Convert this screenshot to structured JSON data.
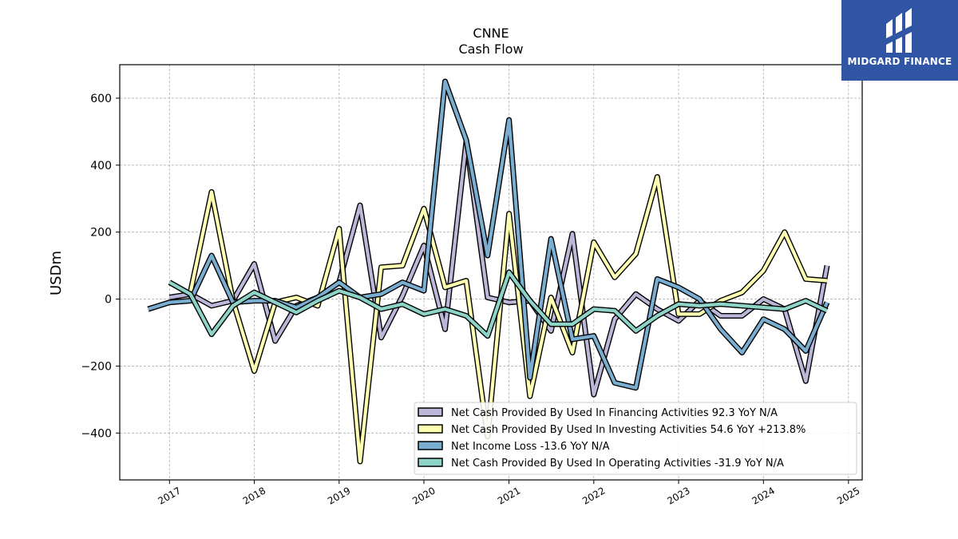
{
  "brand": {
    "name": "MIDGARD FINANCE",
    "color": "#2f55a4"
  },
  "chart_data": {
    "type": "line",
    "title": "CNNE",
    "subtitle": "Cash Flow",
    "ylabel": "USDm",
    "xlabel": "",
    "ylim": [
      -540,
      700
    ],
    "xlim": [
      "2016-06-01",
      "2025-03-01"
    ],
    "yticks": [
      -400,
      -200,
      0,
      200,
      400,
      600
    ],
    "xticks": [
      "2017",
      "2018",
      "2019",
      "2020",
      "2021",
      "2022",
      "2023",
      "2024",
      "2025"
    ],
    "grid": true,
    "legend_position": "bottom-right",
    "series": [
      {
        "name": "Net Cash Provided By Used In Financing Activities",
        "legend": "Net Cash Provided By Used In Financing Activities  92.3 YoY N/A",
        "color": "#bcb7d9",
        "points": [
          [
            "2017-01-01",
            5
          ],
          [
            "2017-04-01",
            15
          ],
          [
            "2017-07-01",
            -20
          ],
          [
            "2017-10-01",
            -5
          ],
          [
            "2018-01-01",
            105
          ],
          [
            "2018-04-01",
            -125
          ],
          [
            "2018-07-01",
            -20
          ],
          [
            "2018-10-01",
            5
          ],
          [
            "2019-01-01",
            50
          ],
          [
            "2019-04-01",
            280
          ],
          [
            "2019-07-01",
            -115
          ],
          [
            "2019-10-01",
            10
          ],
          [
            "2020-01-01",
            160
          ],
          [
            "2020-04-01",
            -90
          ],
          [
            "2020-07-01",
            470
          ],
          [
            "2020-10-01",
            5
          ],
          [
            "2021-01-01",
            -10
          ],
          [
            "2021-04-01",
            -5
          ],
          [
            "2021-07-01",
            -95
          ],
          [
            "2021-10-01",
            195
          ],
          [
            "2022-01-01",
            -285
          ],
          [
            "2022-04-01",
            -60
          ],
          [
            "2022-07-01",
            15
          ],
          [
            "2022-10-01",
            -30
          ],
          [
            "2023-01-01",
            -65
          ],
          [
            "2023-04-01",
            -5
          ],
          [
            "2023-07-01",
            -50
          ],
          [
            "2023-10-01",
            -50
          ],
          [
            "2024-01-01",
            0
          ],
          [
            "2024-04-01",
            -30
          ],
          [
            "2024-07-01",
            -245
          ],
          [
            "2024-10-01",
            100
          ]
        ]
      },
      {
        "name": "Net Cash Provided By Used In Investing Activities",
        "legend": "Net Cash Provided By Used In Investing Activities  54.6 YoY +213.8%",
        "color": "#ffffb2",
        "points": [
          [
            "2017-04-01",
            20
          ],
          [
            "2017-07-01",
            320
          ],
          [
            "2017-10-01",
            -5
          ],
          [
            "2018-01-01",
            -215
          ],
          [
            "2018-04-01",
            -10
          ],
          [
            "2018-07-01",
            5
          ],
          [
            "2018-10-01",
            -20
          ],
          [
            "2019-01-01",
            210
          ],
          [
            "2019-04-01",
            -485
          ],
          [
            "2019-07-01",
            95
          ],
          [
            "2019-10-01",
            100
          ],
          [
            "2020-01-01",
            270
          ],
          [
            "2020-04-01",
            35
          ],
          [
            "2020-07-01",
            55
          ],
          [
            "2020-10-01",
            -410
          ],
          [
            "2021-01-01",
            255
          ],
          [
            "2021-04-01",
            -290
          ],
          [
            "2021-07-01",
            5
          ],
          [
            "2021-10-01",
            -160
          ],
          [
            "2022-01-01",
            170
          ],
          [
            "2022-04-01",
            65
          ],
          [
            "2022-07-01",
            135
          ],
          [
            "2022-10-01",
            365
          ],
          [
            "2023-01-01",
            -45
          ],
          [
            "2023-04-01",
            -45
          ],
          [
            "2023-07-01",
            -5
          ],
          [
            "2023-10-01",
            20
          ],
          [
            "2024-01-01",
            85
          ],
          [
            "2024-04-01",
            200
          ],
          [
            "2024-07-01",
            60
          ],
          [
            "2024-10-01",
            55
          ]
        ]
      },
      {
        "name": "Net Income Loss",
        "legend": "Net Income Loss  -13.6 YoY N/A",
        "color": "#7aaed0",
        "points": [
          [
            "2016-10-01",
            -30
          ],
          [
            "2017-01-01",
            -10
          ],
          [
            "2017-04-01",
            -5
          ],
          [
            "2017-07-01",
            130
          ],
          [
            "2017-10-01",
            -10
          ],
          [
            "2018-01-01",
            -5
          ],
          [
            "2018-04-01",
            -5
          ],
          [
            "2018-07-01",
            -25
          ],
          [
            "2018-10-01",
            5
          ],
          [
            "2019-01-01",
            50
          ],
          [
            "2019-04-01",
            5
          ],
          [
            "2019-07-01",
            15
          ],
          [
            "2019-10-01",
            50
          ],
          [
            "2020-01-01",
            25
          ],
          [
            "2020-04-01",
            650
          ],
          [
            "2020-07-01",
            475
          ],
          [
            "2020-10-01",
            130
          ],
          [
            "2021-01-01",
            535
          ],
          [
            "2021-04-01",
            -235
          ],
          [
            "2021-07-01",
            180
          ],
          [
            "2021-10-01",
            -120
          ],
          [
            "2022-01-01",
            -110
          ],
          [
            "2022-04-01",
            -250
          ],
          [
            "2022-07-01",
            -265
          ],
          [
            "2022-10-01",
            60
          ],
          [
            "2023-01-01",
            35
          ],
          [
            "2023-04-01",
            0
          ],
          [
            "2023-07-01",
            -90
          ],
          [
            "2023-10-01",
            -160
          ],
          [
            "2024-01-01",
            -60
          ],
          [
            "2024-04-01",
            -90
          ],
          [
            "2024-07-01",
            -155
          ],
          [
            "2024-10-01",
            -10
          ]
        ]
      },
      {
        "name": "Net Cash Provided By Used In Operating Activities",
        "legend": "Net Cash Provided By Used In Operating Activities  -31.9 YoY N/A",
        "color": "#8dd3c7",
        "points": [
          [
            "2017-01-01",
            50
          ],
          [
            "2017-04-01",
            15
          ],
          [
            "2017-07-01",
            -105
          ],
          [
            "2017-10-01",
            -20
          ],
          [
            "2018-01-01",
            20
          ],
          [
            "2018-04-01",
            -10
          ],
          [
            "2018-07-01",
            -40
          ],
          [
            "2018-10-01",
            -5
          ],
          [
            "2019-01-01",
            25
          ],
          [
            "2019-04-01",
            5
          ],
          [
            "2019-07-01",
            -30
          ],
          [
            "2019-10-01",
            -15
          ],
          [
            "2020-01-01",
            -45
          ],
          [
            "2020-04-01",
            -30
          ],
          [
            "2020-07-01",
            -50
          ],
          [
            "2020-10-01",
            -110
          ],
          [
            "2021-01-01",
            80
          ],
          [
            "2021-04-01",
            -5
          ],
          [
            "2021-07-01",
            -75
          ],
          [
            "2021-10-01",
            -75
          ],
          [
            "2022-01-01",
            -30
          ],
          [
            "2022-04-01",
            -35
          ],
          [
            "2022-07-01",
            -95
          ],
          [
            "2022-10-01",
            -50
          ],
          [
            "2023-01-01",
            -15
          ],
          [
            "2023-04-01",
            -20
          ],
          [
            "2023-07-01",
            -15
          ],
          [
            "2023-10-01",
            -20
          ],
          [
            "2024-01-01",
            -25
          ],
          [
            "2024-04-01",
            -30
          ],
          [
            "2024-07-01",
            -5
          ],
          [
            "2024-10-01",
            -35
          ]
        ]
      }
    ]
  }
}
